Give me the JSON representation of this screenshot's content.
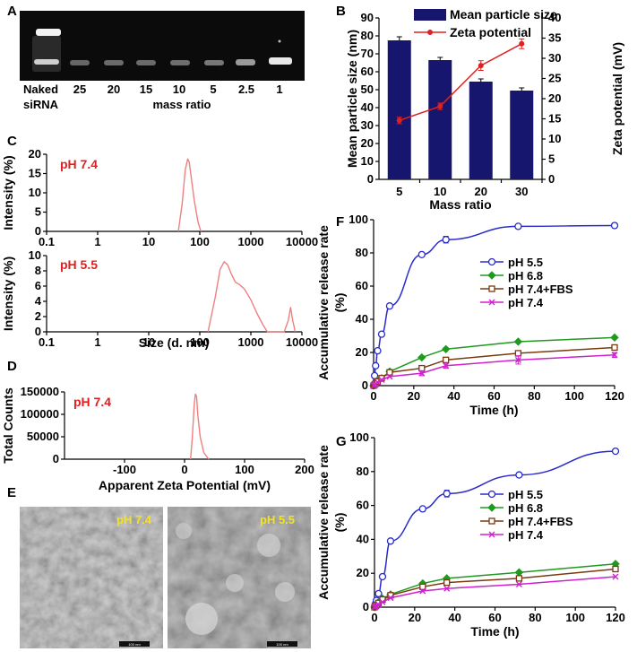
{
  "panel_letters": [
    "A",
    "B",
    "C",
    "D",
    "E",
    "F",
    "G"
  ],
  "chart_data": [
    {
      "panel": "A",
      "type": "gel",
      "lane_labels": [
        "Naked",
        "25",
        "20",
        "15",
        "10",
        "5",
        "2.5",
        "1"
      ],
      "naked_sub": "siRNA",
      "xlabel": "mass ratio"
    },
    {
      "panel": "B",
      "type": "bar",
      "categories": [
        "5",
        "10",
        "20",
        "30"
      ],
      "xlabel": "Mass ratio",
      "ylabel": "Mean particle size (nm)",
      "y2label": "Zeta potential (mV)",
      "ylim": [
        0,
        90
      ],
      "yticks": [
        0,
        10,
        20,
        30,
        40,
        50,
        60,
        70,
        80,
        90
      ],
      "y2lim": [
        0,
        40
      ],
      "y2ticks": [
        0,
        5,
        10,
        15,
        20,
        25,
        30,
        35,
        40
      ],
      "legend": "top-right",
      "series": [
        {
          "name": "Mean particle size",
          "kind": "bar",
          "axis": "left",
          "color": "#16166e",
          "values": [
            77.5,
            66.5,
            54.5,
            49.5
          ],
          "errors": [
            2,
            1.5,
            1.5,
            1.5
          ]
        },
        {
          "name": "Zeta potential",
          "kind": "line",
          "axis": "right",
          "color": "#e02020",
          "values": [
            14.6,
            18.1,
            28.2,
            33.6
          ],
          "errors": [
            0.8,
            0.8,
            1.2,
            1.2
          ]
        }
      ]
    },
    {
      "panel": "C1",
      "type": "line",
      "annotation": "pH 7.4",
      "ylabel": "Intensity (%)",
      "xscale": "log",
      "xticks": [
        "0.1",
        "1",
        "10",
        "100",
        "1000",
        "10000"
      ],
      "ylim": [
        0,
        20
      ],
      "yticks": [
        0,
        5,
        10,
        15,
        20
      ],
      "color": "#f08080",
      "x": [
        38,
        45,
        52,
        58,
        62,
        68,
        78,
        92,
        105
      ],
      "y": [
        0,
        7,
        16,
        18.8,
        18,
        14,
        8,
        2.5,
        0
      ]
    },
    {
      "panel": "C2",
      "type": "line",
      "annotation": "pH 5.5",
      "ylabel": "Intensity (%)",
      "xlabel": "Size (d. nm)",
      "xscale": "log",
      "xticks": [
        "0.1",
        "1",
        "10",
        "100",
        "1000",
        "10000"
      ],
      "ylim": [
        0,
        10
      ],
      "yticks": [
        0,
        2,
        4,
        6,
        8,
        10
      ],
      "color": "#f08080",
      "x": [
        145,
        200,
        250,
        300,
        350,
        420,
        500,
        600,
        750,
        1000,
        1300,
        1700,
        2100,
        4500,
        5400,
        6000,
        6600,
        7400
      ],
      "y": [
        0,
        4.5,
        8.2,
        9.2,
        8.8,
        7.5,
        6.5,
        6.2,
        5.6,
        4.2,
        2.5,
        1,
        0,
        0,
        1.5,
        3.2,
        1.5,
        0
      ]
    },
    {
      "panel": "D",
      "type": "line",
      "annotation": "pH 7.4",
      "ylabel": "Total Counts",
      "xlabel": "Apparent Zeta Potential (mV)",
      "xlim": [
        -200,
        200
      ],
      "xticks": [
        -100,
        0,
        100,
        200
      ],
      "ylim": [
        0,
        150000
      ],
      "yticks": [
        0,
        50000,
        100000,
        150000
      ],
      "color": "#f08080",
      "x": [
        10,
        13,
        16,
        18,
        20,
        22,
        26,
        32,
        40
      ],
      "y": [
        0,
        50000,
        120000,
        145000,
        140000,
        100000,
        50000,
        15000,
        0
      ]
    },
    {
      "panel": "E",
      "type": "micrograph",
      "labels": [
        "pH 7.4",
        "pH 5.5"
      ],
      "scalebar": [
        "100 nm",
        "100 nm"
      ]
    },
    {
      "panel": "F",
      "type": "line",
      "ylabel": "Accumulative release rate (%)",
      "xlabel": "Time (h)",
      "xlim": [
        0,
        120
      ],
      "xticks": [
        0,
        20,
        40,
        60,
        80,
        100,
        120
      ],
      "ylim": [
        0,
        100
      ],
      "yticks": [
        0,
        20,
        40,
        60,
        80,
        100
      ],
      "legend": "right",
      "series": [
        {
          "name": "pH 5.5",
          "color": "#2b2bcc",
          "marker": "circle",
          "x": [
            0,
            0.5,
            1,
            2,
            4,
            8,
            24,
            36,
            72,
            120
          ],
          "y": [
            0,
            6,
            12,
            21,
            31,
            48,
            79,
            88,
            96,
            96.5
          ],
          "errors": [
            0,
            0,
            0,
            0,
            0,
            0,
            0,
            2,
            0,
            1.5
          ]
        },
        {
          "name": "pH 6.8",
          "color": "#1f9a1f",
          "marker": "diamond",
          "x": [
            0,
            0.5,
            1,
            2,
            4,
            8,
            24,
            36,
            72,
            120
          ],
          "y": [
            0,
            0.8,
            1.5,
            3,
            4.5,
            8.5,
            17,
            22,
            26.5,
            29
          ],
          "errors": [
            0,
            0,
            0,
            0,
            0,
            0,
            0,
            0,
            0,
            0
          ]
        },
        {
          "name": "pH 7.4+FBS",
          "color": "#7a3a10",
          "marker": "square",
          "x": [
            0,
            0.5,
            1,
            2,
            4,
            8,
            24,
            36,
            72,
            120
          ],
          "y": [
            0,
            0.6,
            1.2,
            2.5,
            4.5,
            8,
            10.5,
            15.5,
            19.5,
            23
          ],
          "errors": [
            0,
            0,
            0,
            0,
            0,
            0,
            0,
            0,
            0,
            0
          ]
        },
        {
          "name": "pH 7.4",
          "color": "#d020d0",
          "marker": "x",
          "x": [
            0,
            0.5,
            1,
            2,
            4,
            8,
            24,
            36,
            72,
            120
          ],
          "y": [
            0,
            0.4,
            1,
            2,
            3.5,
            5.5,
            7.5,
            12,
            15.5,
            18.5
          ],
          "errors": [
            0,
            0,
            0,
            0,
            0,
            0,
            1.5,
            1.5,
            2.5,
            1.5
          ]
        }
      ]
    },
    {
      "panel": "G",
      "type": "line",
      "ylabel": "Accumulative release rate (%)",
      "xlabel": "Time (h)",
      "xlim": [
        0,
        120
      ],
      "xticks": [
        0,
        20,
        40,
        60,
        80,
        100,
        120
      ],
      "ylim": [
        0,
        100
      ],
      "yticks": [
        0,
        20,
        40,
        60,
        80,
        100
      ],
      "legend": "right",
      "series": [
        {
          "name": "pH 5.5",
          "color": "#2b2bcc",
          "marker": "circle",
          "x": [
            0,
            0.5,
            1,
            2,
            4,
            8,
            24,
            36,
            72,
            120
          ],
          "y": [
            0,
            2,
            4,
            8,
            18,
            39,
            58,
            67,
            78,
            92
          ],
          "errors": [
            0,
            0,
            0,
            0,
            0,
            0,
            0,
            2,
            0,
            0
          ]
        },
        {
          "name": "pH 6.8",
          "color": "#1f9a1f",
          "marker": "diamond",
          "x": [
            0,
            0.5,
            1,
            2,
            4,
            8,
            24,
            36,
            72,
            120
          ],
          "y": [
            0,
            0.8,
            1.5,
            3,
            5,
            7.5,
            14,
            17,
            20.5,
            25.5
          ],
          "errors": [
            0,
            0,
            0,
            0,
            0,
            0,
            0,
            0,
            0,
            0
          ]
        },
        {
          "name": "pH 7.4+FBS",
          "color": "#7a3a10",
          "marker": "square",
          "x": [
            0,
            0.5,
            1,
            2,
            4,
            8,
            24,
            36,
            72,
            120
          ],
          "y": [
            0,
            0.6,
            1.2,
            2.5,
            4.5,
            7,
            12,
            14.5,
            17,
            22.5
          ],
          "errors": [
            0,
            0,
            0,
            0,
            0,
            0,
            0,
            0,
            0,
            0
          ]
        },
        {
          "name": "pH 7.4",
          "color": "#d020d0",
          "marker": "x",
          "x": [
            0,
            0.5,
            1,
            2,
            4,
            8,
            24,
            36,
            72,
            120
          ],
          "y": [
            0,
            0.4,
            0.8,
            1.5,
            3,
            5.5,
            9.5,
            11,
            13.5,
            18
          ],
          "errors": [
            0,
            0,
            0,
            0,
            0,
            0,
            0,
            0,
            0,
            0
          ]
        }
      ]
    }
  ]
}
